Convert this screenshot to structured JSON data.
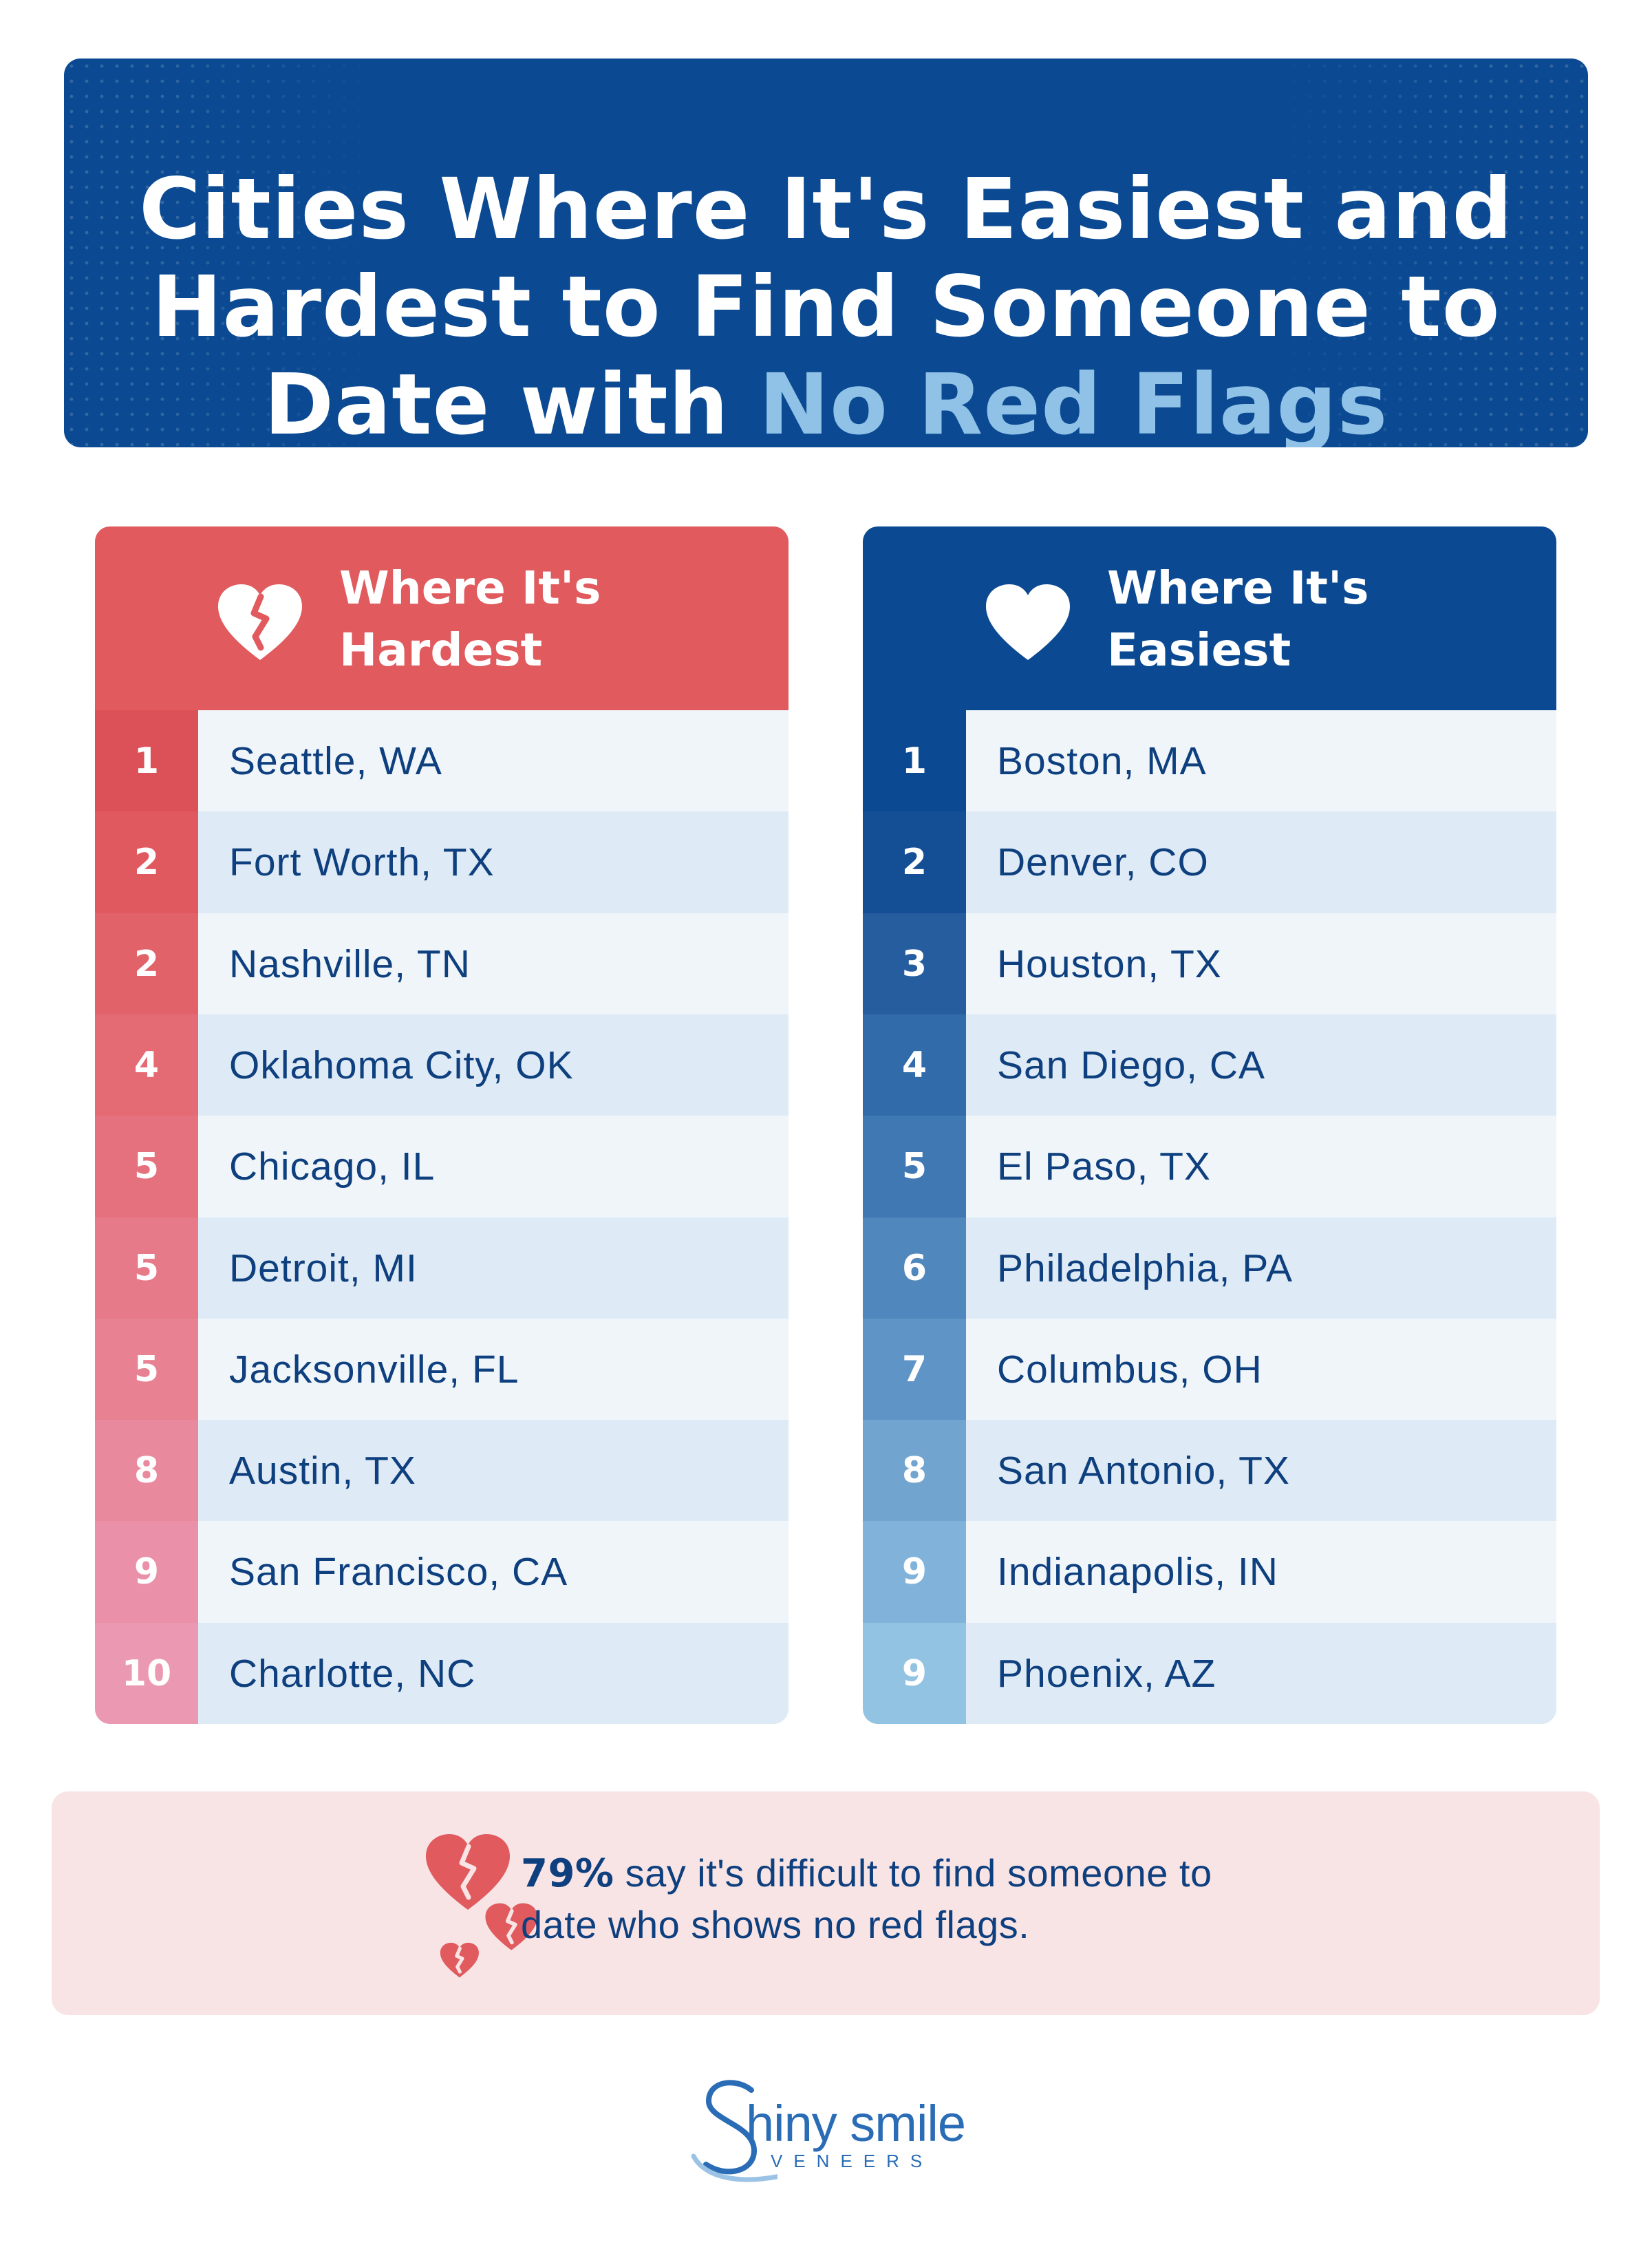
{
  "title": {
    "line1": "Cities Where It's Easiest and",
    "line2": "Hardest to Find Someone to",
    "line3_plain": "Date with ",
    "line3_accent": "No Red Flags"
  },
  "hardest": {
    "header_line1": "Where It's",
    "header_line2": "Hardest",
    "icon": "broken-heart-icon",
    "rows": [
      {
        "rank": "1",
        "city": "Seattle, WA"
      },
      {
        "rank": "2",
        "city": "Fort Worth, TX"
      },
      {
        "rank": "2",
        "city": "Nashville, TN"
      },
      {
        "rank": "4",
        "city": "Oklahoma City, OK"
      },
      {
        "rank": "5",
        "city": "Chicago, IL"
      },
      {
        "rank": "5",
        "city": "Detroit, MI"
      },
      {
        "rank": "5",
        "city": "Jacksonville, FL"
      },
      {
        "rank": "8",
        "city": "Austin, TX"
      },
      {
        "rank": "9",
        "city": "San Francisco, CA"
      },
      {
        "rank": "10",
        "city": "Charlotte, NC"
      }
    ]
  },
  "easiest": {
    "header_line1": "Where It's",
    "header_line2": "Easiest",
    "icon": "heart-icon",
    "rows": [
      {
        "rank": "1",
        "city": "Boston, MA"
      },
      {
        "rank": "2",
        "city": "Denver, CO"
      },
      {
        "rank": "3",
        "city": "Houston, TX"
      },
      {
        "rank": "4",
        "city": "San Diego, CA"
      },
      {
        "rank": "5",
        "city": "El Paso, TX"
      },
      {
        "rank": "6",
        "city": "Philadelphia, PA"
      },
      {
        "rank": "7",
        "city": "Columbus, OH"
      },
      {
        "rank": "8",
        "city": "San Antonio, TX"
      },
      {
        "rank": "9",
        "city": "Indianapolis, IN"
      },
      {
        "rank": "9",
        "city": "Phoenix, AZ"
      }
    ]
  },
  "stat": {
    "percent": "79%",
    "line1_rest": " say it's difficult to find someone to",
    "line2": "date who shows no red flags.",
    "icon": "broken-hearts-icon"
  },
  "logo": {
    "brand": "hiny smile",
    "sub": "VENEERS"
  },
  "colors": {
    "navy": "#0b4a92",
    "accent_blue": "#8fc2e6",
    "red": "#e05a5e",
    "text": "#0e3f7e",
    "hard_rank_gradient": [
      "#dc5158",
      "#e0595f",
      "#e2626a",
      "#e46a74",
      "#e5717e",
      "#e77a88",
      "#e88192",
      "#e9899d",
      "#ea90a8",
      "#eb98b2"
    ],
    "easy_rank_gradient": [
      "#0b4a92",
      "#144f96",
      "#255d9f",
      "#326ba9",
      "#4078b3",
      "#5087bd",
      "#5f95c6",
      "#71a5d0",
      "#81b3da",
      "#93c3e3"
    ]
  }
}
